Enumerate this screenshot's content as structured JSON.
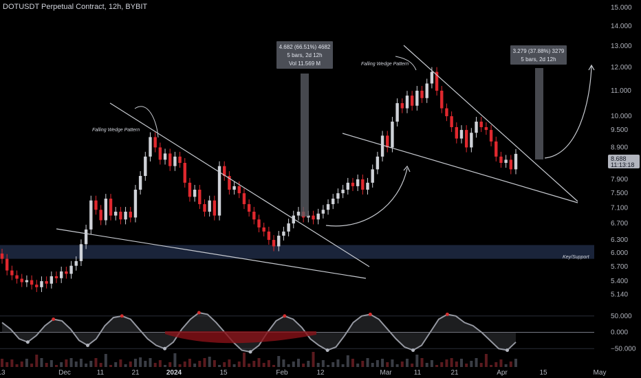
{
  "header": {
    "title": "DOTUSDT Perpetual Contract, 12h, BYBIT"
  },
  "colors": {
    "up": "#cfd2d8",
    "down": "#e0282e",
    "bg": "#000000",
    "support_zone": "#1e2a44",
    "wedge_line": "#c9ccd2"
  },
  "chart_data": {
    "type": "candlestick",
    "title": "DOTUSDT Perpetual Contract, 12h, BYBIT",
    "y_scale": "log",
    "ylim": [
      4.95,
      15.2
    ],
    "y_ticks": [
      "15.000",
      "14.000",
      "13.000",
      "12.000",
      "11.000",
      "10.000",
      "9.500",
      "8.900",
      "8.300",
      "7.900",
      "7.500",
      "7.100",
      "6.700",
      "6.300",
      "6.000",
      "5.700",
      "5.400",
      "5.140"
    ],
    "x_ticks": [
      {
        "label": "13",
        "bold": false
      },
      {
        "label": "Dec",
        "bold": false
      },
      {
        "label": "11",
        "bold": false
      },
      {
        "label": "21",
        "bold": false
      },
      {
        "label": "2024",
        "bold": true
      },
      {
        "label": "15",
        "bold": false
      },
      {
        "label": "Feb",
        "bold": false
      },
      {
        "label": "12",
        "bold": false
      },
      {
        "label": "Mar",
        "bold": false
      },
      {
        "label": "11",
        "bold": false
      },
      {
        "label": "21",
        "bold": false
      },
      {
        "label": "Apr",
        "bold": false
      },
      {
        "label": "15",
        "bold": false
      },
      {
        "label": "May",
        "bold": false
      }
    ],
    "last_price": "8.688",
    "countdown": "11:13:18",
    "closes": [
      5.87,
      5.62,
      5.52,
      5.45,
      5.38,
      5.42,
      5.33,
      5.28,
      5.4,
      5.35,
      5.5,
      5.46,
      5.6,
      5.55,
      5.72,
      5.82,
      6.2,
      6.55,
      7.3,
      7.05,
      6.78,
      7.35,
      6.9,
      7.0,
      6.8,
      7.0,
      6.85,
      7.6,
      8.0,
      8.6,
      9.25,
      8.9,
      8.5,
      8.7,
      8.3,
      8.6,
      8.4,
      7.8,
      7.4,
      7.6,
      7.2,
      7.0,
      7.3,
      6.9,
      8.3,
      8.0,
      7.6,
      7.7,
      7.5,
      7.2,
      7.0,
      6.8,
      6.6,
      6.5,
      6.3,
      6.15,
      6.4,
      6.5,
      6.7,
      6.9,
      7.0,
      6.85,
      6.9,
      6.8,
      6.95,
      7.05,
      7.2,
      7.35,
      7.5,
      7.6,
      7.8,
      7.7,
      7.9,
      7.6,
      7.8,
      8.2,
      8.6,
      9.3,
      8.9,
      9.8,
      10.5,
      10.3,
      10.8,
      10.4,
      11.0,
      10.7,
      11.3,
      11.8,
      11.0,
      10.3,
      10.0,
      9.6,
      9.2,
      9.5,
      8.9,
      9.4,
      9.8,
      9.6,
      9.5,
      9.1,
      8.6,
      8.4,
      8.5,
      8.2,
      8.688
    ],
    "series": [
      {
        "name": "Oscillator",
        "values": [
          30,
          10,
          -20,
          -30,
          -10,
          20,
          40,
          35,
          10,
          -25,
          -40,
          -20,
          20,
          45,
          50,
          40,
          10,
          -20,
          -40,
          -50,
          -30,
          10,
          40,
          60,
          55,
          30,
          0,
          -30,
          -55,
          -60,
          -40,
          0,
          35,
          50,
          40,
          15,
          -20,
          -40,
          -55,
          -45,
          -10,
          30,
          50,
          55,
          40,
          10,
          -20,
          -45,
          -55,
          -40,
          0,
          40,
          55,
          50,
          30,
          20,
          0,
          -25,
          -50,
          -55,
          -30
        ]
      }
    ],
    "osc_ticks": [
      "50.000",
      "0.000",
      "−50.000"
    ],
    "annotations": {
      "wedge_1": "Falling Wedge Pattern",
      "wedge_2": "Falling Wedge Pattern",
      "support": "Key/Support",
      "box_1": {
        "line1": "4.682 (66.51%) 4682",
        "line2": "5 bars, 2d 12h",
        "line3": "Vol 11.569 M"
      },
      "box_2": {
        "line1": "3.279 (37.88%) 3279",
        "line2": "5 bars, 2d 12h"
      }
    }
  }
}
